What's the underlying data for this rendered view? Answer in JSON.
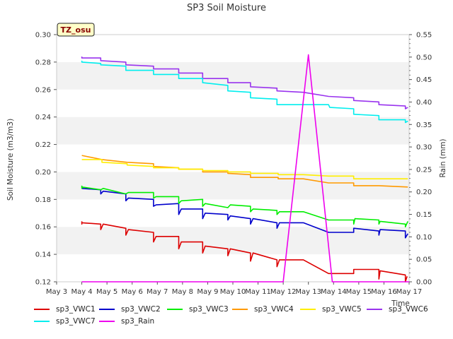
{
  "chart_data": {
    "type": "line",
    "title": "SP3 Soil Moisture",
    "badge": "TZ_osu",
    "xlabel": "Time",
    "ylabel": "Soil Moisture (m3/m3)",
    "y2label": "Rain (mm)",
    "x_ticks": [
      "May 3",
      "May 4",
      "May 5",
      "May 6",
      "May 7",
      "May 8",
      "May 9",
      "May 10",
      "May 11",
      "May 12",
      "May 13",
      "May 14",
      "May 15",
      "May 16",
      "May 17"
    ],
    "xlim": [
      3,
      17
    ],
    "ylim": [
      0.12,
      0.3
    ],
    "y_ticks": [
      0.12,
      0.14,
      0.16,
      0.18,
      0.2,
      0.22,
      0.24,
      0.26,
      0.28,
      0.3
    ],
    "y_tick_labels": [
      "0.12",
      "0.14",
      "0.16",
      "0.18",
      "0.20",
      "0.22",
      "0.24",
      "0.26",
      "0.28",
      "0.30"
    ],
    "y2lim": [
      0.0,
      0.55
    ],
    "y2_ticks": [
      0.0,
      0.05,
      0.1,
      0.15,
      0.2,
      0.25,
      0.3,
      0.35,
      0.4,
      0.45,
      0.5,
      0.55
    ],
    "y2_tick_labels": [
      "0.00",
      "0.05",
      "0.10",
      "0.15",
      "0.20",
      "0.25",
      "0.30",
      "0.35",
      "0.40",
      "0.45",
      "0.50",
      "0.55"
    ],
    "grid": "alternating horizontal bands",
    "legend_placement": "bottom",
    "series": [
      {
        "name": "sp3_VWC1",
        "color": "#dd0000",
        "axis": "left",
        "points": [
          [
            4.0,
            0.164
          ],
          [
            4.0,
            0.162
          ],
          [
            4.0,
            0.163
          ],
          [
            4.75,
            0.162
          ],
          [
            4.75,
            0.158
          ],
          [
            4.85,
            0.162
          ],
          [
            5.75,
            0.159
          ],
          [
            5.75,
            0.154
          ],
          [
            5.85,
            0.158
          ],
          [
            6.85,
            0.156
          ],
          [
            6.85,
            0.149
          ],
          [
            6.95,
            0.153
          ],
          [
            7.85,
            0.153
          ],
          [
            7.85,
            0.144
          ],
          [
            7.95,
            0.149
          ],
          [
            8.8,
            0.149
          ],
          [
            8.8,
            0.141
          ],
          [
            8.9,
            0.146
          ],
          [
            9.8,
            0.144
          ],
          [
            9.8,
            0.139
          ],
          [
            9.9,
            0.144
          ],
          [
            10.7,
            0.141
          ],
          [
            10.7,
            0.135
          ],
          [
            10.8,
            0.141
          ],
          [
            11.75,
            0.136
          ],
          [
            11.75,
            0.131
          ],
          [
            11.85,
            0.136
          ],
          [
            12.8,
            0.136
          ],
          [
            13.8,
            0.126
          ],
          [
            14.8,
            0.126
          ],
          [
            14.8,
            0.129
          ],
          [
            15.8,
            0.129
          ],
          [
            15.8,
            0.122
          ],
          [
            15.85,
            0.128
          ],
          [
            16.85,
            0.125
          ],
          [
            16.85,
            0.12
          ],
          [
            16.92,
            0.124
          ]
        ]
      },
      {
        "name": "sp3_VWC2",
        "color": "#0000cc",
        "axis": "left",
        "points": [
          [
            4.0,
            0.188
          ],
          [
            4.75,
            0.187
          ],
          [
            4.75,
            0.184
          ],
          [
            4.85,
            0.186
          ],
          [
            5.75,
            0.184
          ],
          [
            5.75,
            0.179
          ],
          [
            5.85,
            0.181
          ],
          [
            6.85,
            0.18
          ],
          [
            6.85,
            0.175
          ],
          [
            6.95,
            0.176
          ],
          [
            7.85,
            0.177
          ],
          [
            7.85,
            0.169
          ],
          [
            7.95,
            0.173
          ],
          [
            8.8,
            0.173
          ],
          [
            8.8,
            0.166
          ],
          [
            8.9,
            0.17
          ],
          [
            9.8,
            0.169
          ],
          [
            9.8,
            0.165
          ],
          [
            9.9,
            0.168
          ],
          [
            10.7,
            0.166
          ],
          [
            10.7,
            0.162
          ],
          [
            10.8,
            0.166
          ],
          [
            11.75,
            0.163
          ],
          [
            11.75,
            0.159
          ],
          [
            11.85,
            0.163
          ],
          [
            12.8,
            0.163
          ],
          [
            13.8,
            0.156
          ],
          [
            14.8,
            0.156
          ],
          [
            14.8,
            0.159
          ],
          [
            15.8,
            0.157
          ],
          [
            15.8,
            0.154
          ],
          [
            15.85,
            0.158
          ],
          [
            16.85,
            0.157
          ],
          [
            16.85,
            0.152
          ],
          [
            16.95,
            0.155
          ]
        ]
      },
      {
        "name": "sp3_VWC3",
        "color": "#00ee00",
        "axis": "left",
        "points": [
          [
            4.0,
            0.19
          ],
          [
            4.0,
            0.188
          ],
          [
            4.0,
            0.189
          ],
          [
            4.75,
            0.187
          ],
          [
            4.85,
            0.188
          ],
          [
            5.75,
            0.184
          ],
          [
            5.85,
            0.185
          ],
          [
            6.85,
            0.185
          ],
          [
            6.85,
            0.181
          ],
          [
            6.95,
            0.182
          ],
          [
            7.85,
            0.182
          ],
          [
            7.85,
            0.177
          ],
          [
            7.95,
            0.179
          ],
          [
            8.8,
            0.18
          ],
          [
            8.8,
            0.175
          ],
          [
            8.9,
            0.177
          ],
          [
            9.8,
            0.174
          ],
          [
            9.9,
            0.176
          ],
          [
            10.7,
            0.175
          ],
          [
            10.7,
            0.171
          ],
          [
            10.8,
            0.173
          ],
          [
            11.75,
            0.172
          ],
          [
            11.75,
            0.169
          ],
          [
            11.85,
            0.171
          ],
          [
            12.8,
            0.171
          ],
          [
            13.8,
            0.165
          ],
          [
            14.8,
            0.165
          ],
          [
            14.8,
            0.162
          ],
          [
            14.85,
            0.166
          ],
          [
            15.8,
            0.165
          ],
          [
            15.8,
            0.162
          ],
          [
            15.85,
            0.164
          ],
          [
            16.85,
            0.162
          ],
          [
            16.85,
            0.16
          ],
          [
            16.95,
            0.164
          ]
        ]
      },
      {
        "name": "sp3_VWC4",
        "color": "#ff9900",
        "axis": "left",
        "points": [
          [
            4.0,
            0.212
          ],
          [
            4.8,
            0.209
          ],
          [
            5.8,
            0.207
          ],
          [
            6.85,
            0.206
          ],
          [
            6.85,
            0.204
          ],
          [
            7.85,
            0.203
          ],
          [
            7.85,
            0.202
          ],
          [
            8.8,
            0.202
          ],
          [
            8.8,
            0.2
          ],
          [
            9.8,
            0.2
          ],
          [
            9.8,
            0.199
          ],
          [
            10.7,
            0.198
          ],
          [
            10.7,
            0.196
          ],
          [
            11.8,
            0.196
          ],
          [
            11.8,
            0.195
          ],
          [
            12.8,
            0.195
          ],
          [
            13.8,
            0.192
          ],
          [
            14.8,
            0.192
          ],
          [
            14.8,
            0.19
          ],
          [
            15.8,
            0.19
          ],
          [
            16.95,
            0.189
          ]
        ]
      },
      {
        "name": "sp3_VWC5",
        "color": "#ffee00",
        "axis": "left",
        "points": [
          [
            4.0,
            0.209
          ],
          [
            4.8,
            0.209
          ],
          [
            4.8,
            0.207
          ],
          [
            5.8,
            0.206
          ],
          [
            5.8,
            0.205
          ],
          [
            6.85,
            0.204
          ],
          [
            6.85,
            0.203
          ],
          [
            7.85,
            0.203
          ],
          [
            7.85,
            0.202
          ],
          [
            8.8,
            0.202
          ],
          [
            8.8,
            0.201
          ],
          [
            9.8,
            0.201
          ],
          [
            9.8,
            0.2
          ],
          [
            10.7,
            0.2
          ],
          [
            10.7,
            0.199
          ],
          [
            11.8,
            0.199
          ],
          [
            11.8,
            0.198
          ],
          [
            12.8,
            0.198
          ],
          [
            13.8,
            0.197
          ],
          [
            14.8,
            0.197
          ],
          [
            14.8,
            0.195
          ],
          [
            15.8,
            0.195
          ],
          [
            16.95,
            0.195
          ]
        ]
      },
      {
        "name": "sp3_VWC6",
        "color": "#9933ee",
        "axis": "left",
        "points": [
          [
            4.0,
            0.284
          ],
          [
            4.0,
            0.283
          ],
          [
            4.75,
            0.283
          ],
          [
            4.75,
            0.281
          ],
          [
            5.75,
            0.28
          ],
          [
            5.75,
            0.278
          ],
          [
            6.85,
            0.277
          ],
          [
            6.85,
            0.275
          ],
          [
            7.85,
            0.275
          ],
          [
            7.85,
            0.272
          ],
          [
            8.8,
            0.272
          ],
          [
            8.8,
            0.268
          ],
          [
            9.8,
            0.268
          ],
          [
            9.8,
            0.265
          ],
          [
            10.7,
            0.265
          ],
          [
            10.7,
            0.262
          ],
          [
            11.75,
            0.261
          ],
          [
            11.75,
            0.259
          ],
          [
            12.8,
            0.258
          ],
          [
            13.8,
            0.255
          ],
          [
            14.8,
            0.254
          ],
          [
            14.8,
            0.252
          ],
          [
            15.8,
            0.251
          ],
          [
            15.8,
            0.249
          ],
          [
            16.85,
            0.248
          ],
          [
            16.85,
            0.246
          ],
          [
            16.95,
            0.247
          ]
        ]
      },
      {
        "name": "sp3_VWC7",
        "color": "#00eeee",
        "axis": "left",
        "points": [
          [
            4.0,
            0.281
          ],
          [
            4.0,
            0.28
          ],
          [
            4.75,
            0.279
          ],
          [
            4.75,
            0.278
          ],
          [
            5.75,
            0.277
          ],
          [
            5.75,
            0.274
          ],
          [
            6.85,
            0.274
          ],
          [
            6.85,
            0.271
          ],
          [
            7.85,
            0.271
          ],
          [
            7.85,
            0.268
          ],
          [
            8.8,
            0.268
          ],
          [
            8.8,
            0.265
          ],
          [
            9.8,
            0.263
          ],
          [
            9.8,
            0.259
          ],
          [
            10.7,
            0.258
          ],
          [
            10.7,
            0.254
          ],
          [
            11.75,
            0.253
          ],
          [
            11.75,
            0.249
          ],
          [
            12.8,
            0.249
          ],
          [
            13.8,
            0.249
          ],
          [
            13.85,
            0.247
          ],
          [
            14.8,
            0.246
          ],
          [
            14.8,
            0.242
          ],
          [
            15.8,
            0.241
          ],
          [
            15.8,
            0.238
          ],
          [
            16.85,
            0.238
          ],
          [
            16.85,
            0.236
          ],
          [
            16.95,
            0.237
          ]
        ]
      },
      {
        "name": "sp3_Rain",
        "color": "#ee00ee",
        "axis": "right",
        "points": [
          [
            4.0,
            0.0
          ],
          [
            12.0,
            0.0
          ],
          [
            13.0,
            0.505
          ],
          [
            13.95,
            0.0
          ],
          [
            17.0,
            0.0
          ]
        ]
      }
    ]
  }
}
